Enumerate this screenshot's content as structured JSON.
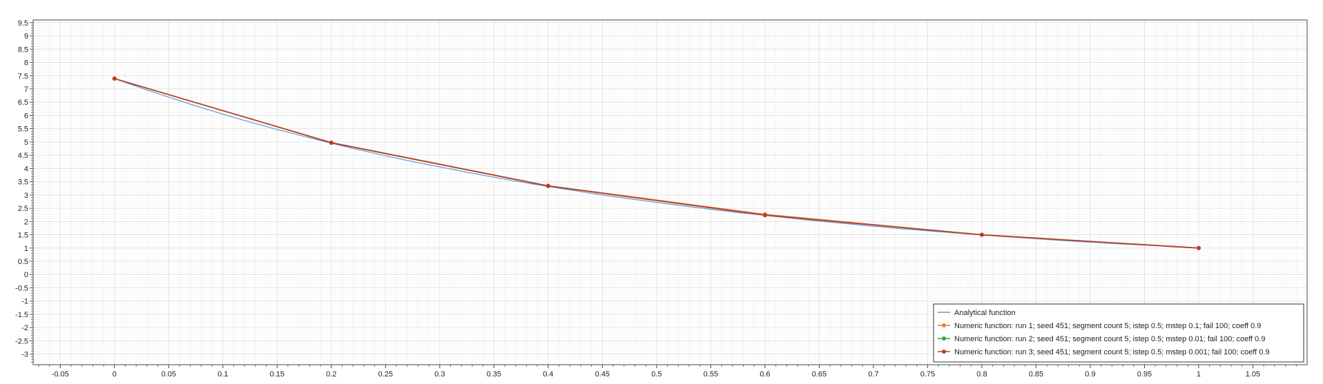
{
  "chart_data": {
    "type": "line",
    "title": "",
    "xlabel": "",
    "ylabel": "",
    "xlim": [
      -0.075,
      1.1
    ],
    "ylim": [
      -3.4,
      9.6
    ],
    "x_ticks": [
      -0.05,
      0,
      0.05,
      0.1,
      0.15,
      0.2,
      0.25,
      0.3,
      0.35,
      0.4,
      0.45,
      0.5,
      0.55,
      0.6,
      0.65,
      0.7,
      0.75,
      0.8,
      0.85,
      0.9,
      0.95,
      1,
      1.05
    ],
    "x_tick_labels": [
      "-0.05",
      "0",
      "0.05",
      "0.1",
      "0.15",
      "0.2",
      "0.25",
      "0.3",
      "0.35",
      "0.4",
      "0.45",
      "0.5",
      "0.55",
      "0.6",
      "0.65",
      "0.7",
      "0.75",
      "0.8",
      "0.85",
      "0.9",
      "0.95",
      "1",
      "1.05"
    ],
    "y_ticks": [
      -3,
      -2.5,
      -2,
      -1.5,
      -1,
      -0.5,
      0,
      0.5,
      1,
      1.5,
      2,
      2.5,
      3,
      3.5,
      4,
      4.5,
      5,
      5.5,
      6,
      6.5,
      7,
      7.5,
      8,
      8.5,
      9,
      9.5
    ],
    "y_tick_labels": [
      "-3",
      "-2.5",
      "-2",
      "-1.5",
      "-1",
      "-0.5",
      "0",
      "0.5",
      "1",
      "1.5",
      "2",
      "2.5",
      "3",
      "3.5",
      "4",
      "4.5",
      "5",
      "5.5",
      "6",
      "6.5",
      "7",
      "7.5",
      "8",
      "8.5",
      "9",
      "9.5"
    ],
    "grid": true,
    "legend_position": "bottom-right",
    "x": [
      0,
      0.2,
      0.4,
      0.6,
      0.8,
      1
    ],
    "series": [
      {
        "name": "Analytical function",
        "color": "#5b9bd5",
        "markers": false,
        "x": [
          0,
          0.025,
          0.05,
          0.075,
          0.1,
          0.125,
          0.15,
          0.175,
          0.2,
          0.225,
          0.25,
          0.275,
          0.3,
          0.325,
          0.35,
          0.375,
          0.4,
          0.425,
          0.45,
          0.475,
          0.5,
          0.525,
          0.55,
          0.575,
          0.6,
          0.625,
          0.65,
          0.675,
          0.7,
          0.725,
          0.75,
          0.775,
          0.8,
          0.825,
          0.85,
          0.875,
          0.9,
          0.925,
          0.95,
          0.975,
          1
        ],
        "values": [
          7.39,
          7.03,
          6.69,
          6.36,
          6.05,
          5.75,
          5.47,
          5.21,
          4.95,
          4.71,
          4.48,
          4.26,
          4.06,
          3.86,
          3.67,
          3.49,
          3.32,
          3.16,
          3.0,
          2.86,
          2.72,
          2.59,
          2.46,
          2.34,
          2.23,
          2.12,
          2.01,
          1.92,
          1.82,
          1.73,
          1.65,
          1.57,
          1.49,
          1.42,
          1.35,
          1.28,
          1.22,
          1.16,
          1.11,
          1.05,
          1.0
        ]
      },
      {
        "name": "Numeric function: run 1; seed 451; segment count 5; istep 0.5; mstep 0.1; fail 100; coeff 0.9",
        "color": "#ed7d31",
        "markers": true,
        "x": [
          0,
          0.2,
          0.4,
          0.6,
          0.8,
          1
        ],
        "values": [
          7.39,
          4.98,
          3.35,
          2.27,
          1.5,
          1.0
        ]
      },
      {
        "name": "Numeric function: run 2; seed 451; segment count 5; istep 0.5; mstep 0.01; fail 100; coeff 0.9",
        "color": "#4e9a4e",
        "markers": true,
        "x": [
          0,
          0.2,
          0.4,
          0.6,
          0.8,
          1
        ],
        "values": [
          7.39,
          4.97,
          3.34,
          2.24,
          1.5,
          1.0
        ]
      },
      {
        "name": "Numeric function: run 3; seed 451; segment count 5; istep 0.5; mstep 0.001; fail 100; coeff 0.9",
        "color": "#c0392b",
        "markers": true,
        "x": [
          0,
          0.2,
          0.4,
          0.6,
          0.8,
          1
        ],
        "values": [
          7.39,
          4.97,
          3.34,
          2.24,
          1.5,
          1.0
        ]
      }
    ]
  }
}
